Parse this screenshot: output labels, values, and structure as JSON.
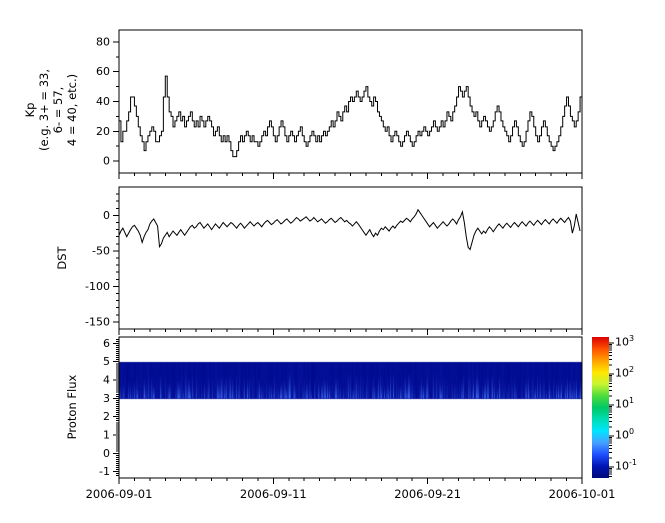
{
  "figure": {
    "background": "#ffffff",
    "axis_color": "#000000",
    "trace_color": "#000000"
  },
  "x_axis": {
    "tick_labels": [
      "2006-09-01",
      "2006-09-11",
      "2006-09-21",
      "2006-10-01"
    ],
    "tick_days": [
      0,
      10,
      20,
      30
    ],
    "minor_step_days": 1,
    "range_days": [
      0,
      30
    ]
  },
  "chart_data": [
    {
      "type": "line",
      "subtype": "step",
      "name": "kp-index",
      "ylabel": "Kp\n(e.g. 3+ = 33,\n6- = 57,\n4 = 40, etc.)",
      "x_start": "2006-09-01",
      "x_end": "2006-10-01",
      "points_per_day": 8,
      "ylim": [
        -8,
        88
      ],
      "y_tick_values": [
        0,
        20,
        40,
        60,
        80
      ],
      "y_tick_labels": [
        "0",
        "20",
        "40",
        "60",
        "80"
      ],
      "y_minor_step": 10,
      "values": [
        27,
        13,
        20,
        20,
        27,
        33,
        43,
        43,
        37,
        30,
        23,
        17,
        13,
        7,
        13,
        17,
        20,
        23,
        20,
        13,
        13,
        17,
        20,
        43,
        57,
        43,
        33,
        30,
        23,
        27,
        30,
        33,
        27,
        30,
        23,
        27,
        30,
        33,
        27,
        23,
        27,
        23,
        30,
        27,
        23,
        27,
        30,
        27,
        23,
        17,
        20,
        23,
        17,
        13,
        17,
        13,
        17,
        13,
        7,
        3,
        3,
        7,
        13,
        17,
        13,
        17,
        20,
        17,
        13,
        17,
        13,
        13,
        10,
        13,
        17,
        20,
        17,
        23,
        27,
        23,
        17,
        13,
        17,
        23,
        27,
        23,
        17,
        13,
        17,
        20,
        17,
        13,
        17,
        20,
        23,
        17,
        13,
        10,
        13,
        17,
        20,
        17,
        13,
        17,
        13,
        17,
        20,
        17,
        20,
        23,
        27,
        23,
        27,
        33,
        30,
        27,
        33,
        37,
        33,
        40,
        43,
        40,
        43,
        47,
        43,
        40,
        43,
        47,
        50,
        43,
        40,
        37,
        43,
        40,
        33,
        30,
        27,
        23,
        20,
        23,
        17,
        13,
        17,
        20,
        17,
        13,
        10,
        13,
        17,
        20,
        17,
        13,
        10,
        13,
        17,
        20,
        17,
        20,
        23,
        20,
        17,
        20,
        23,
        27,
        23,
        20,
        23,
        27,
        23,
        27,
        33,
        30,
        27,
        33,
        37,
        43,
        50,
        47,
        43,
        47,
        50,
        43,
        37,
        33,
        30,
        33,
        27,
        23,
        27,
        30,
        27,
        23,
        20,
        23,
        27,
        33,
        37,
        33,
        27,
        23,
        20,
        17,
        13,
        17,
        23,
        27,
        23,
        17,
        13,
        10,
        13,
        20,
        27,
        33,
        30,
        23,
        17,
        13,
        17,
        23,
        27,
        23,
        17,
        13,
        10,
        7,
        10,
        13,
        17,
        23,
        30,
        37,
        43,
        37,
        30,
        27,
        23,
        27,
        33,
        43
      ]
    },
    {
      "type": "line",
      "subtype": "line",
      "name": "dst-index",
      "ylabel": "DST",
      "x_start": "2006-09-01",
      "x_end": "2006-10-01",
      "points_per_day": 8,
      "ylim": [
        -160,
        40
      ],
      "y_tick_values": [
        0,
        -50,
        -100,
        -150
      ],
      "y_tick_labels": [
        "0",
        "-50",
        "-100",
        "-150"
      ],
      "y_minor_step": 10,
      "values": [
        -28,
        -22,
        -18,
        -24,
        -30,
        -25,
        -20,
        -16,
        -14,
        -18,
        -22,
        -28,
        -38,
        -30,
        -24,
        -20,
        -12,
        -8,
        -5,
        -10,
        -15,
        -44,
        -40,
        -32,
        -28,
        -24,
        -30,
        -26,
        -22,
        -25,
        -28,
        -24,
        -20,
        -24,
        -28,
        -24,
        -20,
        -16,
        -14,
        -18,
        -16,
        -12,
        -10,
        -14,
        -18,
        -15,
        -12,
        -16,
        -20,
        -16,
        -12,
        -15,
        -18,
        -14,
        -10,
        -13,
        -16,
        -13,
        -10,
        -12,
        -15,
        -18,
        -14,
        -11,
        -14,
        -18,
        -15,
        -12,
        -9,
        -12,
        -15,
        -12,
        -10,
        -13,
        -16,
        -12,
        -9,
        -7,
        -10,
        -13,
        -11,
        -8,
        -6,
        -9,
        -12,
        -10,
        -7,
        -5,
        -8,
        -11,
        -9,
        -6,
        -3,
        -5,
        -8,
        -6,
        -4,
        -2,
        -5,
        -8,
        -6,
        -3,
        -6,
        -9,
        -7,
        -5,
        -8,
        -11,
        -9,
        -6,
        -4,
        -7,
        -10,
        -8,
        -5,
        -3,
        -6,
        -9,
        -7,
        -10,
        -12,
        -15,
        -12,
        -9,
        -12,
        -16,
        -20,
        -24,
        -28,
        -24,
        -20,
        -26,
        -30,
        -25,
        -28,
        -22,
        -18,
        -20,
        -16,
        -19,
        -22,
        -18,
        -15,
        -18,
        -14,
        -11,
        -8,
        -10,
        -7,
        -4,
        -6,
        -9,
        -5,
        -2,
        2,
        8,
        4,
        0,
        -4,
        -8,
        -12,
        -16,
        -13,
        -10,
        -14,
        -18,
        -15,
        -12,
        -9,
        -12,
        -15,
        -12,
        -8,
        -5,
        -8,
        -12,
        -6,
        -2,
        5,
        -10,
        -30,
        -45,
        -48,
        -38,
        -28,
        -22,
        -18,
        -22,
        -26,
        -22,
        -25,
        -20,
        -16,
        -19,
        -23,
        -19,
        -15,
        -12,
        -15,
        -18,
        -14,
        -11,
        -14,
        -17,
        -13,
        -10,
        -13,
        -16,
        -12,
        -9,
        -12,
        -15,
        -11,
        -8,
        -11,
        -14,
        -10,
        -7,
        -10,
        -13,
        -9,
        -6,
        -9,
        -12,
        -8,
        -5,
        -8,
        -11,
        -7,
        -4,
        -7,
        -10,
        -6,
        -3,
        -8,
        -25,
        -15,
        2,
        -10,
        -22
      ]
    },
    {
      "type": "heatmap",
      "name": "proton-flux-spectrogram",
      "ylabel": "Proton Flux",
      "x_start": "2006-09-01",
      "x_end": "2006-10-01",
      "ylim": [
        -1.35,
        6.35
      ],
      "y_tick_values": [
        -1,
        0,
        1,
        2,
        3,
        4,
        5,
        6
      ],
      "y_tick_labels": [
        "-1",
        "0",
        "1",
        "2",
        "3",
        "4",
        "5",
        "6"
      ],
      "band": {
        "y_from": 3,
        "y_to": 5,
        "base_log10_flux": -1.2,
        "streak_max_log10_flux": 0.5,
        "base_color": "#000a91",
        "streak_color": "#4678ff",
        "seed": 42
      },
      "colorbar": {
        "scale": "log",
        "range_log10": [
          -1.35,
          3.2
        ],
        "tick_exponents": [
          3,
          2,
          1,
          0,
          -1
        ],
        "colors_top_to_bottom": [
          "#dc0000",
          "#ff5000",
          "#ffa000",
          "#ffe600",
          "#c8f632",
          "#50dc3c",
          "#00c864",
          "#00dcb4",
          "#00e6ff",
          "#46a0ff",
          "#1e50ff",
          "#0014b4",
          "#000a78"
        ]
      }
    }
  ]
}
